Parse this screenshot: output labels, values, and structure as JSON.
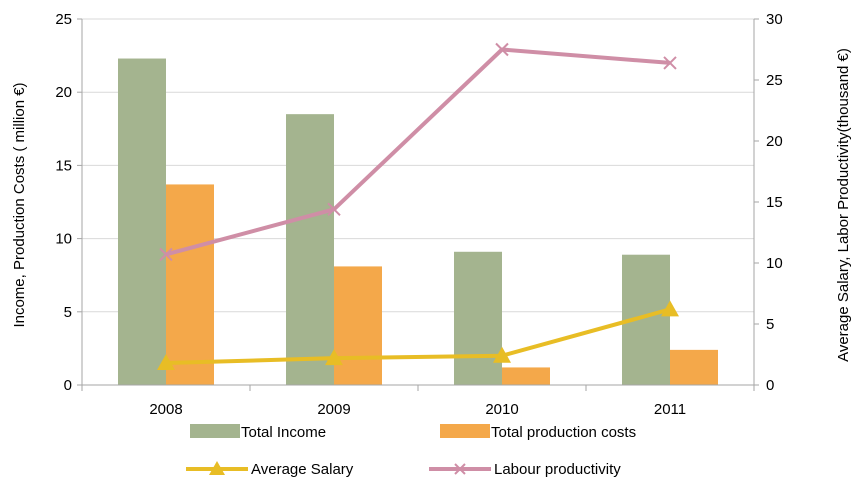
{
  "chart_data": {
    "type": "bar",
    "categories": [
      "2008",
      "2009",
      "2010",
      "2011"
    ],
    "ylabel": "Income, Production  Costs ( million €)",
    "y2label": "Average Salary, Labor Productivity(thousand €)",
    "ylim": [
      0,
      25
    ],
    "y2lim": [
      0,
      30
    ],
    "yticks": [
      0,
      5,
      10,
      15,
      20,
      25
    ],
    "y2ticks": [
      0,
      5,
      10,
      15,
      20,
      25,
      30
    ],
    "grid": "horizontal",
    "legend_position": "bottom",
    "bar_series": [
      {
        "name": "Total Income",
        "values": [
          22.3,
          18.5,
          9.1,
          8.9
        ],
        "color": "#a4b48f",
        "axis": "left"
      },
      {
        "name": "Total production costs",
        "values": [
          13.7,
          8.1,
          1.2,
          2.4
        ],
        "color": "#f4a84a",
        "axis": "left"
      }
    ],
    "line_series": [
      {
        "name": "Average Salary",
        "values": [
          1.8,
          2.2,
          2.4,
          6.2
        ],
        "color": "#e8bd25",
        "marker": "triangle",
        "axis": "right"
      },
      {
        "name": "Labour productivity",
        "values": [
          10.7,
          14.4,
          27.5,
          26.4
        ],
        "color": "#cf8ea6",
        "marker": "x",
        "axis": "right"
      }
    ]
  }
}
